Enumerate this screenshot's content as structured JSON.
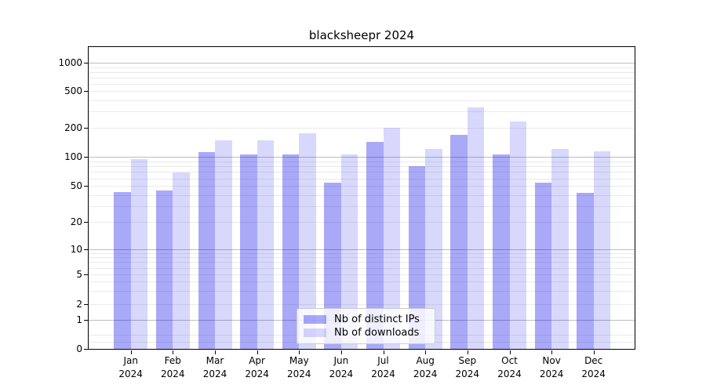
{
  "title": "blacksheepr 2024",
  "chart_data": {
    "type": "bar",
    "title": "blacksheepr 2024",
    "categories": [
      "Jan 2024",
      "Feb 2024",
      "Mar 2024",
      "Apr 2024",
      "May 2024",
      "Jun 2024",
      "Jul 2024",
      "Aug 2024",
      "Sep 2024",
      "Oct 2024",
      "Nov 2024",
      "Dec 2024"
    ],
    "series": [
      {
        "name": "Nb of distinct IPs",
        "color": "rgba(10,10,235,0.35)",
        "values": [
          43,
          45,
          113,
          106,
          105,
          54,
          144,
          80,
          169,
          106,
          54,
          42
        ]
      },
      {
        "name": "Nb of downloads",
        "color": "rgba(10,10,235,0.16)",
        "values": [
          94,
          69,
          150,
          150,
          175,
          105,
          200,
          120,
          330,
          237,
          121,
          114
        ]
      }
    ],
    "yscale": "symlog",
    "yticks": [
      0,
      1,
      2,
      5,
      10,
      20,
      50,
      100,
      200,
      500,
      1000
    ],
    "ylim": [
      0,
      1500
    ],
    "xlabel": "",
    "ylabel": "",
    "grid": true,
    "legend_position": "lower center",
    "colors": {
      "bar_dark": "rgba(10,10,235,0.35)",
      "bar_light": "rgba(10,10,235,0.16)",
      "grid_major": "#bdbdbd",
      "grid_minor": "#eaeaea",
      "frame": "#000000"
    }
  }
}
